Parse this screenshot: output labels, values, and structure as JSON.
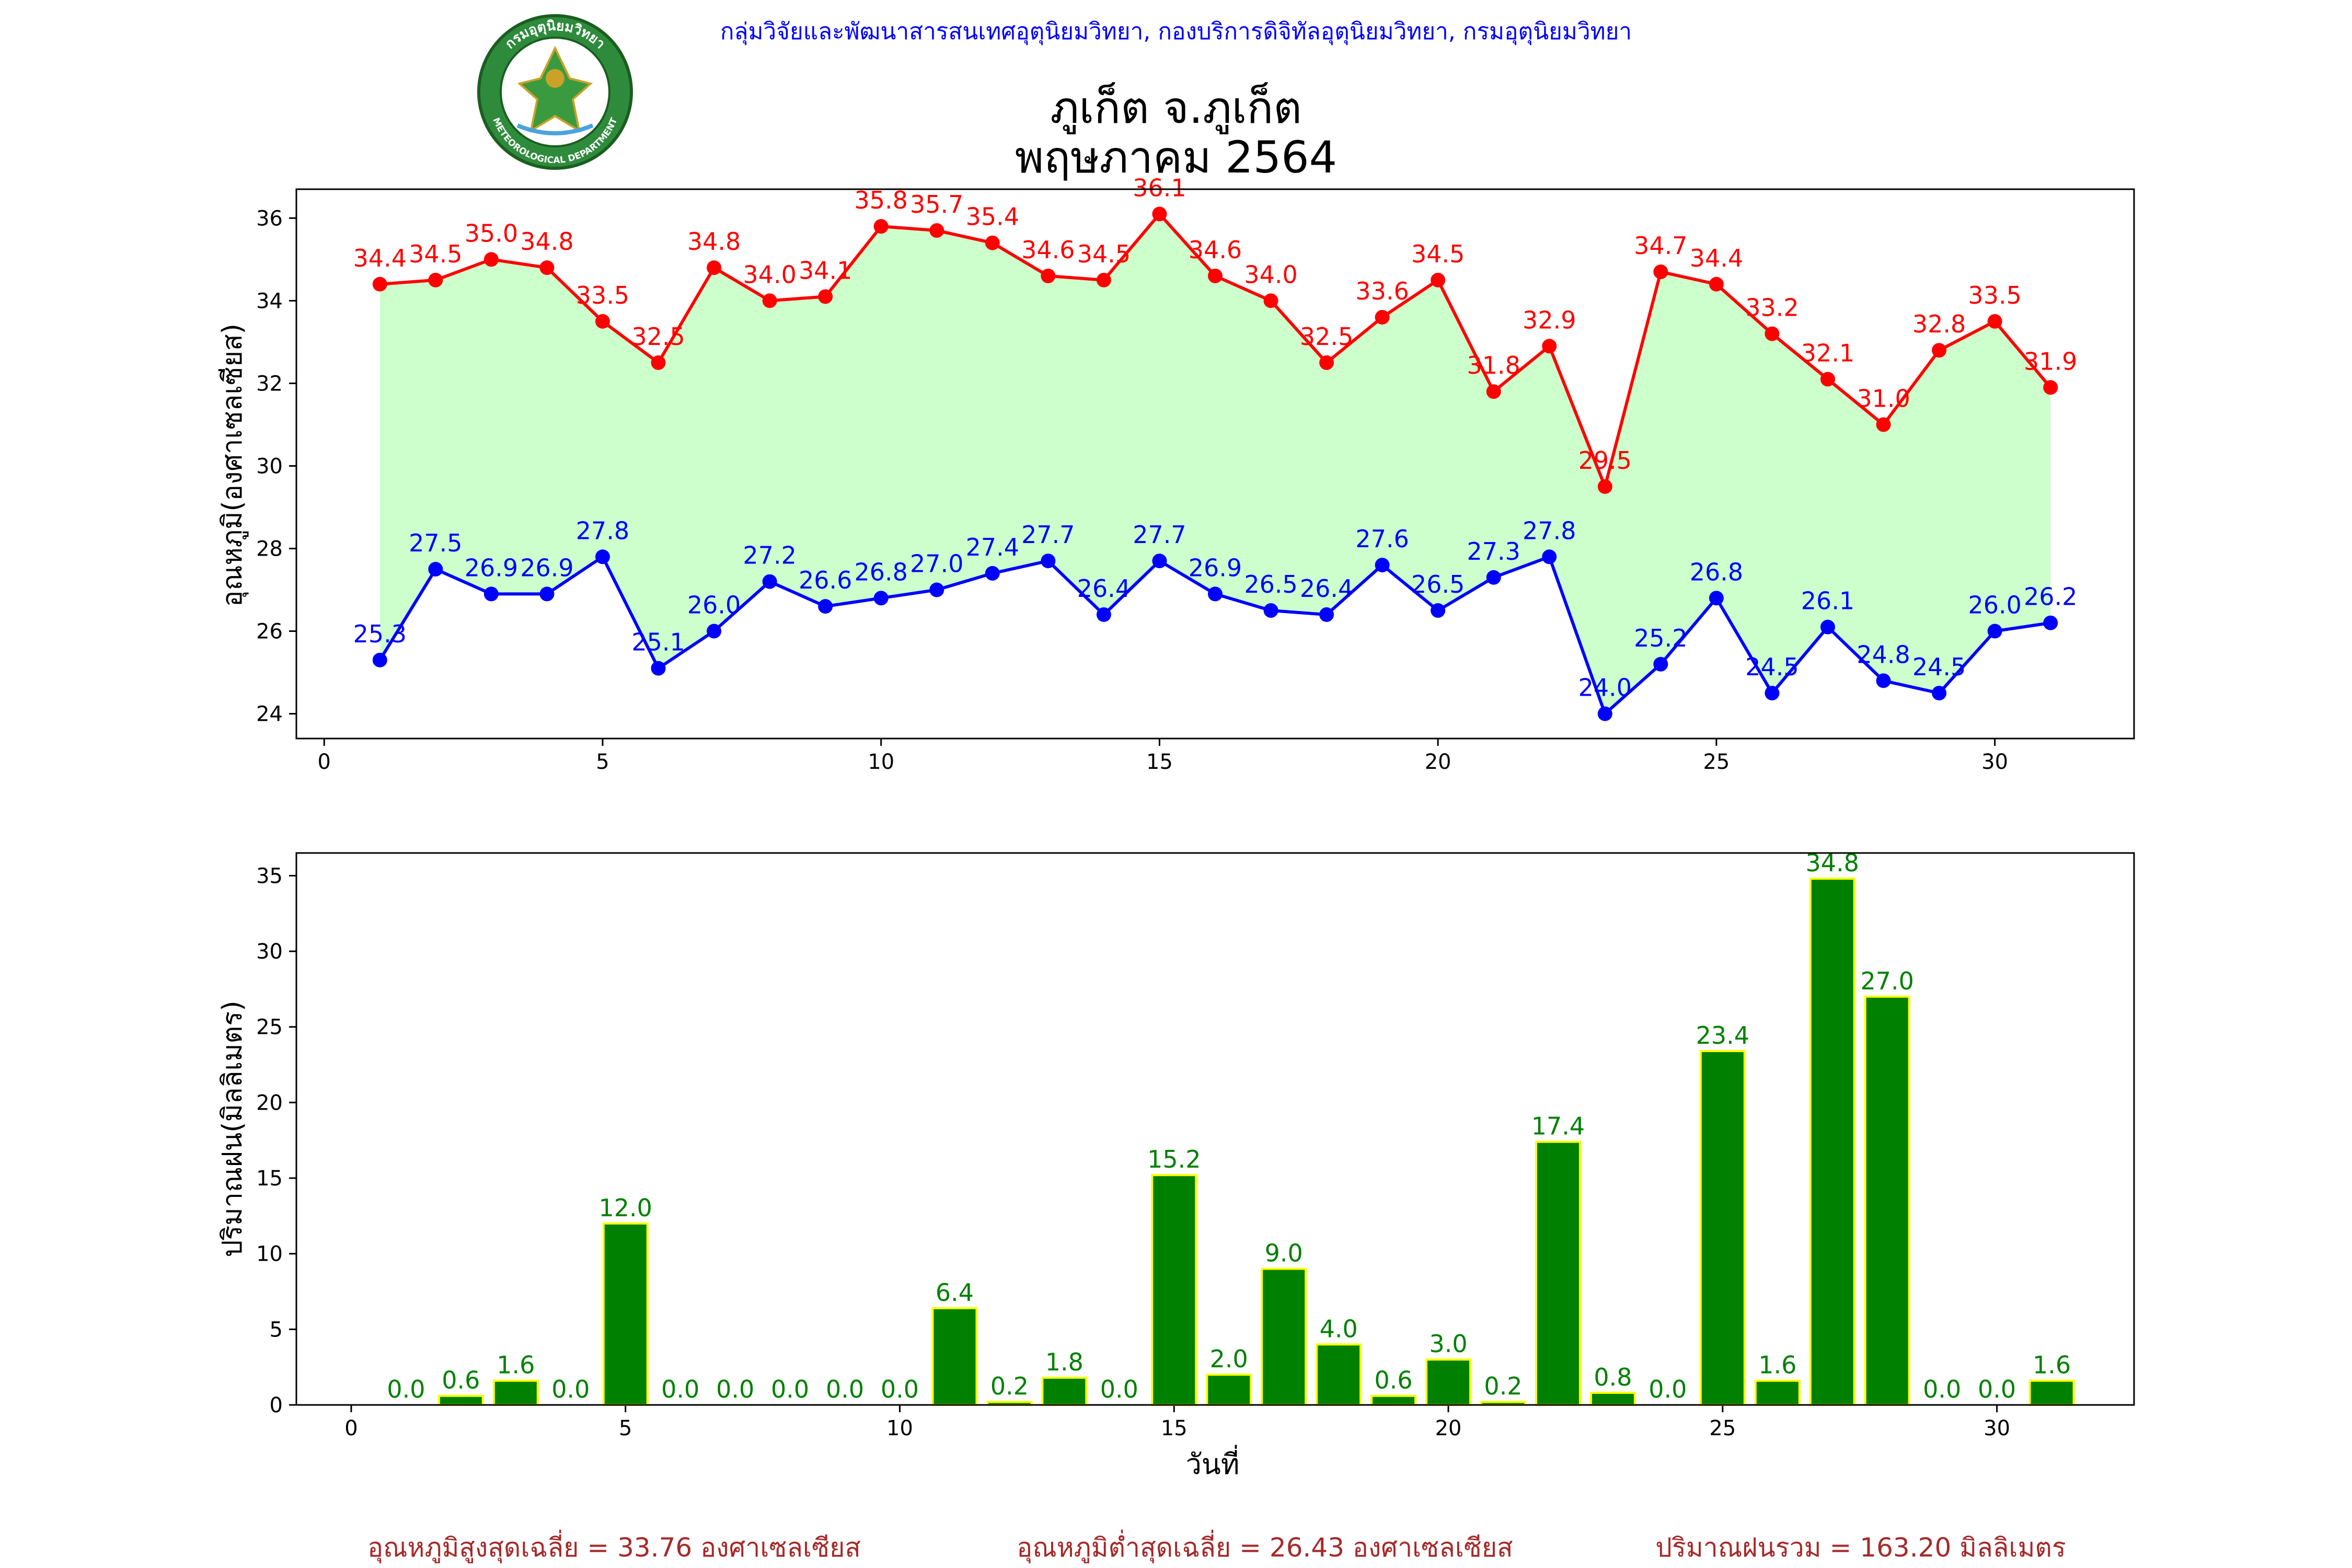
{
  "header": {
    "org_line": "กลุ่มวิจัยและพัฒนาสารสนเทศอุตุนิยมวิทยา, กองบริการดิจิทัลอุตุนิยมวิทยา, กรมอุตุนิยมวิทยา",
    "title_line1": "ภูเก็ต จ.ภูเก็ต",
    "title_line2": "พฤษภาคม 2564",
    "logo_text_top": "กรมอุตุนิยมวิทยา",
    "logo_text_bottom": "METEOROLOGICAL DEPARTMENT"
  },
  "colors": {
    "max_line": "#ff0000",
    "min_line": "#0000ff",
    "fill": "#ccffcc",
    "bar": "#008000",
    "bar_edge": "#ffff00",
    "bar_label": "#008000",
    "org_text": "#0000ff",
    "footer_text": "#a52a2a"
  },
  "chart_data": [
    {
      "type": "line",
      "ylabel": "อุณหภูมิ(องศาเซลเซียส)",
      "xlabel": "",
      "x": [
        1,
        2,
        3,
        4,
        5,
        6,
        7,
        8,
        9,
        10,
        11,
        12,
        13,
        14,
        15,
        16,
        17,
        18,
        19,
        20,
        21,
        22,
        23,
        24,
        25,
        26,
        27,
        28,
        29,
        30,
        31
      ],
      "series": [
        {
          "values": [
            34.4,
            34.5,
            35.0,
            34.8,
            33.5,
            32.5,
            34.8,
            34.0,
            34.1,
            35.8,
            35.7,
            35.4,
            34.6,
            34.5,
            36.1,
            34.6,
            34.0,
            32.5,
            33.6,
            34.5,
            31.8,
            32.9,
            29.5,
            34.7,
            34.4,
            33.2,
            32.1,
            31.0,
            32.8,
            33.5,
            31.9
          ],
          "color": "#ff0000"
        },
        {
          "values": [
            25.3,
            27.5,
            26.9,
            26.9,
            27.8,
            25.1,
            26.0,
            27.2,
            26.6,
            26.8,
            27.0,
            27.4,
            27.7,
            26.4,
            27.7,
            26.9,
            26.5,
            26.4,
            27.6,
            26.5,
            27.3,
            27.8,
            24.0,
            25.2,
            26.8,
            24.5,
            26.1,
            24.8,
            24.5,
            26.0,
            26.2
          ],
          "color": "#0000ff"
        }
      ],
      "xlim": [
        -0.5,
        32.5
      ],
      "ylim": [
        23.4,
        36.7
      ],
      "xticks": [
        0,
        5,
        10,
        15,
        20,
        25,
        30
      ],
      "yticks": [
        24,
        26,
        28,
        30,
        32,
        34,
        36
      ],
      "fill_between": true,
      "grid": false
    },
    {
      "type": "bar",
      "ylabel": "ปริมาณฝน(มิลลิเมตร)",
      "xlabel": "วันที่",
      "x": [
        1,
        2,
        3,
        4,
        5,
        6,
        7,
        8,
        9,
        10,
        11,
        12,
        13,
        14,
        15,
        16,
        17,
        18,
        19,
        20,
        21,
        22,
        23,
        24,
        25,
        26,
        27,
        28,
        29,
        30,
        31
      ],
      "values": [
        0.0,
        0.6,
        1.6,
        0.0,
        12.0,
        0.0,
        0.0,
        0.0,
        0.0,
        0.0,
        6.4,
        0.2,
        1.8,
        0.0,
        15.2,
        2.0,
        9.0,
        4.0,
        0.6,
        3.0,
        0.2,
        17.4,
        0.8,
        0.0,
        23.4,
        1.6,
        34.8,
        27.0,
        0.0,
        0.0,
        1.6
      ],
      "xlim": [
        -1,
        32.5
      ],
      "ylim": [
        0,
        36.5
      ],
      "xticks": [
        0,
        5,
        10,
        15,
        20,
        25,
        30
      ],
      "yticks": [
        0,
        5,
        10,
        15,
        20,
        25,
        30,
        35
      ],
      "grid": false
    }
  ],
  "footer": {
    "avg_max": "อุณหภูมิสูงสุดเฉลี่ย = 33.76 องศาเซลเซียส",
    "avg_min": "อุณหภูมิต่ำสุดเฉลี่ย = 26.43 องศาเซลเซียส",
    "total_rain": "ปริมาณฝนรวม = 163.20 มิลลิเมตร"
  }
}
